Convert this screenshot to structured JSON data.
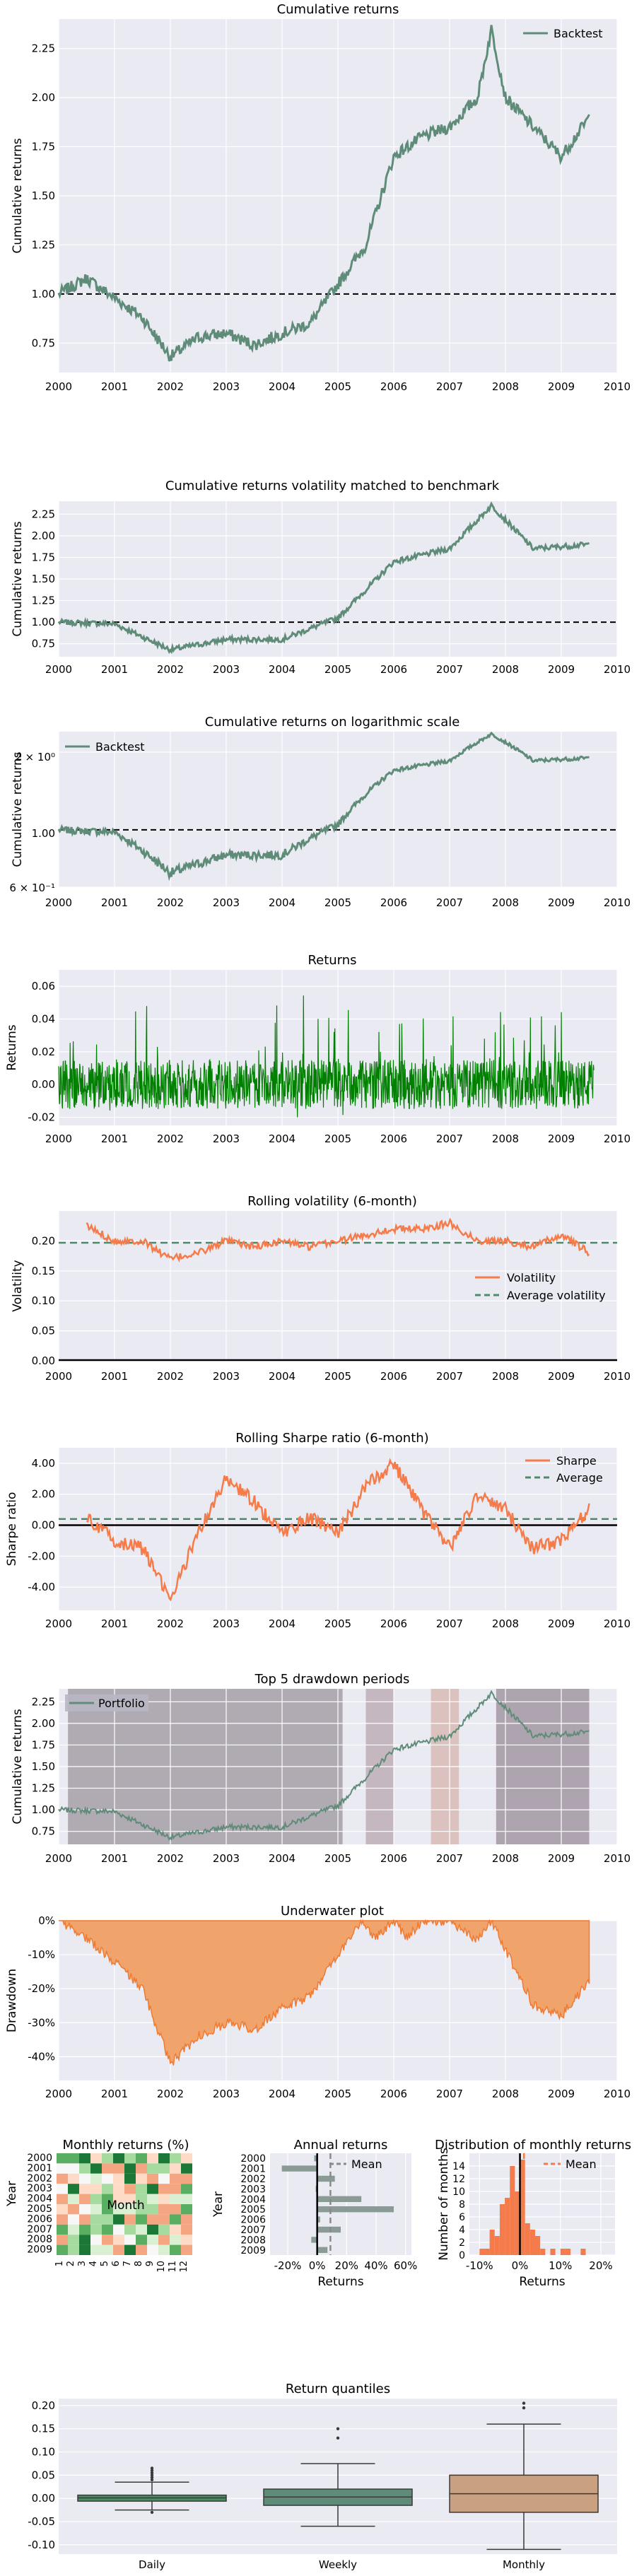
{
  "figure": "Backtest tear sheet",
  "charts": {
    "cumulative": {
      "title": "Cumulative returns",
      "ylabel": "Cumulative returns",
      "yticks": [
        "0.75",
        "1.00",
        "1.25",
        "1.50",
        "1.75",
        "2.00",
        "2.25"
      ],
      "legend": [
        "Backtest"
      ]
    },
    "vol_matched": {
      "title": "Cumulative returns volatility matched to benchmark",
      "ylabel": "Cumulative returns",
      "yticks": [
        "0.75",
        "1.00",
        "1.25",
        "1.50",
        "1.75",
        "2.00",
        "2.25"
      ]
    },
    "log": {
      "title": "Cumulative returns on logarithmic scale",
      "ylabel": "Cumulative returns",
      "yticks": [
        "2 × 10⁰",
        "1.00",
        "6 × 10⁻¹"
      ],
      "legend": [
        "Backtest"
      ]
    },
    "returns": {
      "title": "Returns",
      "ylabel": "Returns",
      "yticks": [
        "-0.02",
        "0.00",
        "0.02",
        "0.04",
        "0.06"
      ]
    },
    "rolling_vol": {
      "title": "Rolling volatility (6-month)",
      "ylabel": "Volatility",
      "yticks": [
        "0.00",
        "0.05",
        "0.10",
        "0.15",
        "0.20"
      ],
      "legend": [
        "Volatility",
        "Average volatility"
      ]
    },
    "rolling_sharpe": {
      "title": "Rolling Sharpe ratio (6-month)",
      "ylabel": "Sharpe ratio",
      "yticks": [
        "-4.00",
        "-2.00",
        "0.00",
        "2.00",
        "4.00"
      ],
      "legend": [
        "Sharpe",
        "Average"
      ]
    },
    "drawdown_periods": {
      "title": "Top 5 drawdown periods",
      "ylabel": "Cumulative returns",
      "yticks": [
        "0.75",
        "1.00",
        "1.25",
        "1.50",
        "1.75",
        "2.00",
        "2.25"
      ],
      "legend": [
        "Portfolio"
      ]
    },
    "underwater": {
      "title": "Underwater plot",
      "ylabel": "Drawdown",
      "yticks": [
        "0%",
        "-10%",
        "-20%",
        "-30%",
        "-40%"
      ]
    },
    "monthly_heatmap": {
      "title": "Monthly returns (%)",
      "xlabel": "Month",
      "ylabel": "Year"
    },
    "annual": {
      "title": "Annual returns",
      "xlabel": "Returns",
      "ylabel": "Year",
      "xticks": [
        "-20%",
        "0%",
        "20%",
        "40%",
        "60%"
      ],
      "legend": [
        "Mean"
      ]
    },
    "monthly_dist": {
      "title": "Distribution of monthly returns",
      "xlabel": "Returns",
      "ylabel": "Number of months",
      "xticks": [
        "-10%",
        "0%",
        "10%",
        "20%"
      ],
      "yticks": [
        "0",
        "2",
        "4",
        "6",
        "8",
        "10",
        "12",
        "14"
      ],
      "legend": [
        "Mean"
      ]
    },
    "quantiles": {
      "title": "Return quantiles",
      "categories": [
        "Daily",
        "Weekly",
        "Monthly"
      ],
      "yticks": [
        "-0.10",
        "-0.05",
        "0.00",
        "0.05",
        "0.10",
        "0.15",
        "0.20"
      ]
    }
  },
  "xyears": [
    "2000",
    "2001",
    "2002",
    "2003",
    "2004",
    "2005",
    "2006",
    "2007",
    "2008",
    "2009",
    "2010"
  ],
  "colors": {
    "backtest": "#5f8c78",
    "orange": "#f57c4a",
    "green": "#008000",
    "grid_bg": "#eaeaf2",
    "bench_dash": "#000000",
    "dd_fill": "#f0a36a",
    "quant_daily": "#4f8a64",
    "quant_weekly": "#5f8c78",
    "quant_monthly": "#c9a080",
    "annual_bar": "#8a9a94"
  },
  "chart_data": [
    {
      "type": "line",
      "title": "Cumulative returns",
      "ylabel": "Cumulative returns",
      "x_range": [
        "2000",
        "2010"
      ],
      "ylim": [
        0.6,
        2.4
      ],
      "series": [
        {
          "name": "Backtest",
          "x": [
            "2000-01",
            "2000-07",
            "2001-01",
            "2001-07",
            "2002-01",
            "2002-07",
            "2003-01",
            "2003-07",
            "2004-01",
            "2004-07",
            "2005-01",
            "2005-07",
            "2006-01",
            "2006-07",
            "2007-01",
            "2007-07",
            "2007-10",
            "2008-01",
            "2008-07",
            "2009-01",
            "2009-07"
          ],
          "y": [
            1.0,
            1.08,
            0.98,
            0.88,
            0.68,
            0.78,
            0.8,
            0.74,
            0.8,
            0.85,
            1.05,
            1.25,
            1.7,
            1.8,
            1.85,
            2.0,
            2.35,
            2.0,
            1.85,
            1.7,
            1.9
          ]
        }
      ],
      "reference_line": 1.0
    },
    {
      "type": "line",
      "title": "Cumulative returns volatility matched to benchmark",
      "ylim": [
        0.6,
        2.4
      ],
      "series": [
        {
          "name": "",
          "x": [
            "2000-01",
            "2001-01",
            "2002-01",
            "2003-01",
            "2004-01",
            "2005-01",
            "2006-01",
            "2007-01",
            "2007-10",
            "2008-07",
            "2009-07"
          ],
          "y": [
            1.0,
            0.98,
            0.68,
            0.8,
            0.8,
            1.05,
            1.7,
            1.85,
            2.35,
            1.85,
            1.9
          ]
        }
      ],
      "reference_line": 1.0
    },
    {
      "type": "line",
      "title": "Cumulative returns on logarithmic scale",
      "log_y": true,
      "ylim": [
        0.6,
        2.4
      ],
      "series": [
        {
          "name": "Backtest",
          "x": [
            "2000-01",
            "2001-01",
            "2002-01",
            "2003-01",
            "2004-01",
            "2005-01",
            "2006-01",
            "2007-01",
            "2007-10",
            "2008-07",
            "2009-07"
          ],
          "y": [
            1.0,
            0.98,
            0.68,
            0.8,
            0.8,
            1.05,
            1.7,
            1.85,
            2.35,
            1.85,
            1.9
          ]
        }
      ],
      "reference_line": 1.0
    },
    {
      "type": "line",
      "title": "Returns",
      "ylim": [
        -0.025,
        0.07
      ],
      "description_range": [
        -0.02,
        0.065
      ],
      "x_range": [
        "2000",
        "2009-08"
      ]
    },
    {
      "type": "line",
      "title": "Rolling volatility (6-month)",
      "ylim": [
        0,
        0.25
      ],
      "series": [
        {
          "name": "Volatility",
          "x": [
            "2000-07",
            "2001-01",
            "2001-07",
            "2002-01",
            "2002-07",
            "2003-01",
            "2003-07",
            "2004-01",
            "2004-07",
            "2005-01",
            "2005-07",
            "2006-01",
            "2006-07",
            "2007-01",
            "2007-07",
            "2008-01",
            "2008-07",
            "2009-01",
            "2009-07"
          ],
          "y": [
            0.225,
            0.2,
            0.2,
            0.17,
            0.18,
            0.2,
            0.19,
            0.2,
            0.19,
            0.2,
            0.21,
            0.22,
            0.22,
            0.23,
            0.2,
            0.2,
            0.19,
            0.21,
            0.18
          ]
        }
      ],
      "average": 0.197
    },
    {
      "type": "line",
      "title": "Rolling Sharpe ratio (6-month)",
      "ylim": [
        -5.5,
        5
      ],
      "series": [
        {
          "name": "Sharpe",
          "x": [
            "2000-07",
            "2001-01",
            "2001-07",
            "2002-01",
            "2002-07",
            "2003-01",
            "2003-07",
            "2004-01",
            "2004-07",
            "2005-01",
            "2005-07",
            "2006-01",
            "2006-07",
            "2007-01",
            "2007-07",
            "2008-01",
            "2008-07",
            "2009-01",
            "2009-07"
          ],
          "y": [
            0.5,
            -1.0,
            -1.5,
            -4.8,
            -0.5,
            3.0,
            1.5,
            -0.5,
            0.5,
            -0.5,
            2.5,
            4.0,
            1.0,
            -1.5,
            2.0,
            1.0,
            -1.5,
            -1.0,
            1.0
          ]
        }
      ],
      "average": 0.4
    },
    {
      "type": "line",
      "title": "Top 5 drawdown periods",
      "ylim": [
        0.6,
        2.4
      ],
      "shaded_periods": [
        [
          "2000-03",
          "2005-02"
        ],
        [
          "2005-07",
          "2006-01"
        ],
        [
          "2006-09",
          "2007-03"
        ],
        [
          "2007-11",
          "2009-07"
        ]
      ],
      "series": [
        {
          "name": "Portfolio",
          "x": [
            "2000-01",
            "2001-01",
            "2002-01",
            "2003-01",
            "2004-01",
            "2005-01",
            "2006-01",
            "2007-01",
            "2007-10",
            "2008-07",
            "2009-07"
          ],
          "y": [
            1.0,
            0.98,
            0.68,
            0.8,
            0.8,
            1.05,
            1.7,
            1.85,
            2.35,
            1.85,
            1.9
          ]
        }
      ]
    },
    {
      "type": "area",
      "title": "Underwater plot",
      "ylim": [
        -0.45,
        0
      ],
      "x": [
        "2000-01",
        "2000-07",
        "2001-01",
        "2001-07",
        "2002-01",
        "2002-07",
        "2003-01",
        "2003-07",
        "2004-01",
        "2004-07",
        "2005-01",
        "2005-06",
        "2005-09",
        "2006-01",
        "2006-04",
        "2006-07",
        "2007-01",
        "2007-07",
        "2007-10",
        "2008-07",
        "2009-01",
        "2009-07"
      ],
      "y": [
        0,
        -0.05,
        -0.12,
        -0.2,
        -0.42,
        -0.34,
        -0.3,
        -0.32,
        -0.26,
        -0.22,
        -0.1,
        0,
        -0.05,
        0,
        -0.05,
        0,
        0,
        -0.06,
        0,
        -0.25,
        -0.28,
        -0.18
      ]
    },
    {
      "type": "heatmap",
      "title": "Monthly returns (%)",
      "rows": [
        "2000",
        "2001",
        "2002",
        "2003",
        "2004",
        "2005",
        "2006",
        "2007",
        "2008",
        "2009"
      ],
      "cols": [
        "1",
        "2",
        "3",
        "4",
        "5",
        "6",
        "7",
        "8",
        "9",
        "10",
        "11",
        "12"
      ]
    },
    {
      "type": "bar",
      "title": "Annual returns",
      "orientation": "horizontal",
      "categories": [
        "2000",
        "2001",
        "2002",
        "2003",
        "2004",
        "2005",
        "2006",
        "2007",
        "2008",
        "2009"
      ],
      "values": [
        -0.02,
        -0.24,
        0.12,
        -0.01,
        0.3,
        0.52,
        0.02,
        0.16,
        -0.04,
        0.07
      ],
      "mean": 0.09
    },
    {
      "type": "bar",
      "title": "Distribution of monthly returns",
      "bins_from": -0.1,
      "bin_width": 0.0125,
      "values": [
        1,
        1,
        4,
        3,
        8,
        9,
        14,
        10,
        15,
        5,
        4,
        3,
        1,
        0,
        1,
        0,
        1,
        1,
        0,
        0,
        1
      ],
      "mean": 0.01
    },
    {
      "type": "box",
      "title": "Return quantiles",
      "categories": [
        "Daily",
        "Weekly",
        "Monthly"
      ],
      "boxes": [
        {
          "whislo": -0.025,
          "q1": -0.006,
          "med": 0.001,
          "q3": 0.007,
          "whishi": 0.035,
          "fliers": [
            0.04,
            0.045,
            0.05,
            0.055,
            0.06,
            0.065,
            -0.03
          ]
        },
        {
          "whislo": -0.06,
          "q1": -0.015,
          "med": 0.003,
          "q3": 0.02,
          "whishi": 0.075,
          "fliers": [
            0.13,
            0.15
          ]
        },
        {
          "whislo": -0.11,
          "q1": -0.03,
          "med": 0.01,
          "q3": 0.05,
          "whishi": 0.16,
          "fliers": [
            0.195,
            0.205
          ]
        }
      ]
    }
  ]
}
